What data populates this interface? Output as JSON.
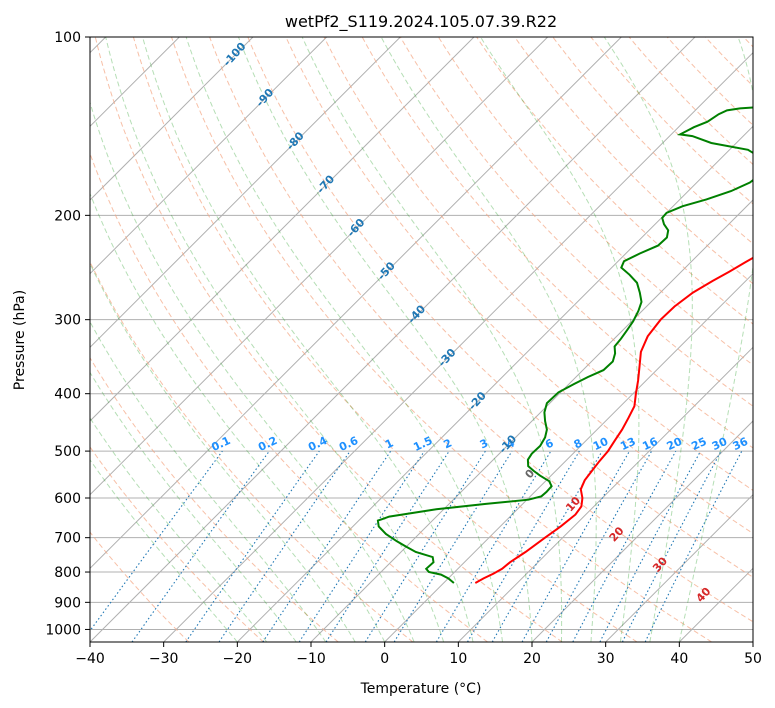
{
  "chart_data": {
    "type": "skew-t",
    "title": "wetPf2_S119.2024.105.07.39.R22",
    "xlabel": "Temperature (°C)",
    "ylabel": "Pressure (hPa)",
    "xlim": [
      -40,
      50
    ],
    "ylim": [
      1050,
      100
    ],
    "y_scale": "log",
    "x_ticks": [
      "−40",
      "−30",
      "−20",
      "−10",
      "0",
      "10",
      "20",
      "30",
      "40",
      "50"
    ],
    "y_ticks": [
      "100",
      "200",
      "300",
      "400",
      "500",
      "600",
      "700",
      "800",
      "900",
      "1000"
    ],
    "grid": true,
    "colors": {
      "temperature": "#ff0000",
      "dewpoint": "#008000",
      "dry_adiabat": "#f4a582",
      "moist_adiabat": "#2ca02c",
      "mixing_ratio": "#1f77b4",
      "isotherm": "#808080",
      "label_blue": "#1f77b4",
      "label_red": "#d62728",
      "label_mixing": "#1e90ff"
    },
    "series": [
      {
        "key": "temperature",
        "points": [
          [
            4.3,
            835
          ],
          [
            4.8,
            820
          ],
          [
            5.5,
            805
          ],
          [
            6.0,
            790
          ],
          [
            6.2,
            770
          ],
          [
            6.9,
            740
          ],
          [
            7.6,
            700
          ],
          [
            8.2,
            670
          ],
          [
            8.6,
            640
          ],
          [
            8.3,
            620
          ],
          [
            7.3,
            600
          ],
          [
            5.9,
            580
          ],
          [
            5.2,
            560
          ],
          [
            4.9,
            540
          ],
          [
            4.6,
            520
          ],
          [
            4.4,
            500
          ],
          [
            3.9,
            480
          ],
          [
            3.4,
            460
          ],
          [
            2.7,
            440
          ],
          [
            1.9,
            420
          ],
          [
            0.4,
            400
          ],
          [
            -1.1,
            380
          ],
          [
            -2.8,
            360
          ],
          [
            -4.6,
            340
          ],
          [
            -5.8,
            320
          ],
          [
            -6.3,
            300
          ],
          [
            -6.2,
            285
          ],
          [
            -5.6,
            270
          ],
          [
            -4.5,
            258
          ],
          [
            -3.5,
            249
          ],
          [
            -2.6,
            240
          ],
          [
            -1.7,
            232
          ],
          [
            -0.5,
            224
          ],
          [
            1.0,
            216
          ],
          [
            2.5,
            209
          ],
          [
            4.0,
            203
          ],
          [
            6.0,
            196
          ],
          [
            8.0,
            189
          ],
          [
            11.0,
            179
          ],
          [
            13.0,
            172
          ],
          [
            14.5,
            167
          ],
          [
            17.0,
            161
          ],
          [
            21.0,
            155
          ],
          [
            23.0,
            150
          ],
          [
            24.0,
            146
          ],
          [
            24.2,
            142
          ],
          [
            24.0,
            139
          ],
          [
            24.5,
            135
          ],
          [
            26.0,
            128
          ],
          [
            28.5,
            120
          ],
          [
            31.0,
            113
          ],
          [
            34.0,
            105
          ],
          [
            37.0,
            100
          ]
        ]
      },
      {
        "key": "dewpoint",
        "points": [
          [
            1.4,
            835
          ],
          [
            0.0,
            820
          ],
          [
            -1.5,
            808
          ],
          [
            -3.5,
            800
          ],
          [
            -4.3,
            790
          ],
          [
            -4.2,
            770
          ],
          [
            -5.0,
            755
          ],
          [
            -8.0,
            740
          ],
          [
            -10.0,
            725
          ],
          [
            -12.0,
            710
          ],
          [
            -14.5,
            690
          ],
          [
            -16.5,
            670
          ],
          [
            -17.4,
            655
          ],
          [
            -16.4,
            645
          ],
          [
            -11.0,
            627
          ],
          [
            -5.0,
            614
          ],
          [
            0.2,
            604
          ],
          [
            1.5,
            596
          ],
          [
            1.6,
            586
          ],
          [
            1.5,
            573
          ],
          [
            0.5,
            562
          ],
          [
            -1.5,
            550
          ],
          [
            -3.0,
            540
          ],
          [
            -4.4,
            530
          ],
          [
            -5.3,
            517
          ],
          [
            -5.6,
            505
          ],
          [
            -5.5,
            490
          ],
          [
            -6.0,
            474
          ],
          [
            -6.8,
            460
          ],
          [
            -8.2,
            445
          ],
          [
            -9.5,
            430
          ],
          [
            -10.4,
            415
          ],
          [
            -10.3,
            398
          ],
          [
            -9.3,
            385
          ],
          [
            -8.4,
            375
          ],
          [
            -7.2,
            365
          ],
          [
            -7.1,
            353
          ],
          [
            -7.9,
            342
          ],
          [
            -8.9,
            333
          ],
          [
            -9.1,
            323
          ],
          [
            -9.4,
            313
          ],
          [
            -9.8,
            302
          ],
          [
            -10.5,
            290
          ],
          [
            -11.3,
            280
          ],
          [
            -12.8,
            270
          ],
          [
            -14.5,
            260
          ],
          [
            -16.6,
            252
          ],
          [
            -18.7,
            245
          ],
          [
            -19.2,
            239
          ],
          [
            -18.1,
            232
          ],
          [
            -16.7,
            225
          ],
          [
            -16.6,
            218
          ],
          [
            -17.4,
            212
          ],
          [
            -18.8,
            207
          ],
          [
            -19.9,
            202
          ],
          [
            -20.0,
            198
          ],
          [
            -18.7,
            193
          ],
          [
            -16.4,
            188
          ],
          [
            -14.2,
            182
          ],
          [
            -12.8,
            176
          ],
          [
            -12.4,
            170
          ],
          [
            -13.0,
            165
          ],
          [
            -14.6,
            160
          ],
          [
            -17.5,
            155
          ],
          [
            -23.4,
            151
          ],
          [
            -26.9,
            147
          ],
          [
            -28.8,
            146
          ],
          [
            -27.9,
            142
          ],
          [
            -26.8,
            139
          ],
          [
            -26.3,
            135
          ],
          [
            -25.7,
            133
          ],
          [
            -24.2,
            132
          ],
          [
            -20.5,
            131
          ],
          [
            -17.0,
            130
          ],
          [
            -14.0,
            128
          ],
          [
            -12.0,
            125
          ],
          [
            -10.0,
            121
          ],
          [
            -8.0,
            115
          ],
          [
            -6.0,
            110
          ],
          [
            -4.0,
            105
          ],
          [
            -2.0,
            100
          ]
        ]
      }
    ],
    "dry_adiabat_labels": [
      "-100",
      "-90",
      "-80",
      "-70",
      "-60",
      "-50",
      "-40",
      "-30",
      "-20",
      "-10",
      "0",
      "10",
      "20",
      "30",
      "40"
    ],
    "mixing_ratio_labels": [
      "0.1",
      "0.2",
      "0.4",
      "0.6",
      "1",
      "1.5",
      "2",
      "3",
      "4",
      "6",
      "8",
      "10",
      "13",
      "16",
      "20",
      "25",
      "30",
      "36"
    ]
  }
}
